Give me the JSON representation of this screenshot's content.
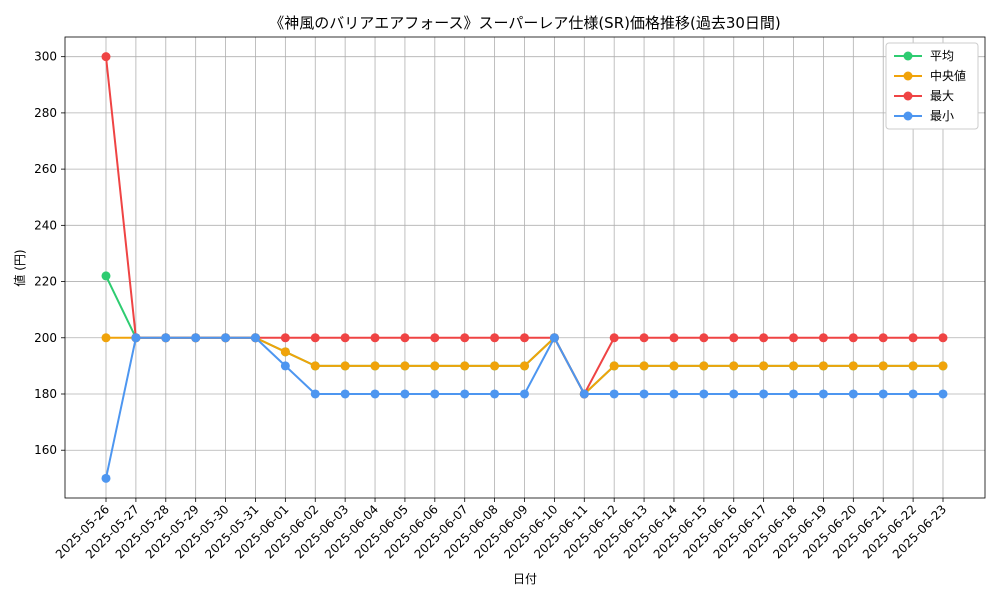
{
  "chart_data": {
    "type": "line",
    "title": "《神風のバリアエアフォース》スーパーレア仕様(SR)価格推移(過去30日間)",
    "xlabel": "日付",
    "ylabel": "値 (円)",
    "ylim": [
      143,
      307
    ],
    "yticks": [
      160,
      180,
      200,
      220,
      240,
      260,
      280,
      300
    ],
    "grid": true,
    "legend_position": "top-right",
    "categories": [
      "2025-05-26",
      "2025-05-27",
      "2025-05-28",
      "2025-05-29",
      "2025-05-30",
      "2025-05-31",
      "2025-06-01",
      "2025-06-02",
      "2025-06-03",
      "2025-06-04",
      "2025-06-05",
      "2025-06-06",
      "2025-06-07",
      "2025-06-08",
      "2025-06-09",
      "2025-06-10",
      "2025-06-11",
      "2025-06-12",
      "2025-06-13",
      "2025-06-14",
      "2025-06-15",
      "2025-06-16",
      "2025-06-17",
      "2025-06-18",
      "2025-06-19",
      "2025-06-20",
      "2025-06-21",
      "2025-06-22",
      "2025-06-23"
    ],
    "series": [
      {
        "name": "平均",
        "color": "#2ecc71",
        "values": [
          222,
          200,
          200,
          200,
          200,
          200,
          195,
          190,
          190,
          190,
          190,
          190,
          190,
          190,
          190,
          200,
          180,
          190,
          190,
          190,
          190,
          190,
          190,
          190,
          190,
          190,
          190,
          190,
          190
        ]
      },
      {
        "name": "中央値",
        "color": "#f0a30a",
        "values": [
          200,
          200,
          200,
          200,
          200,
          200,
          195,
          190,
          190,
          190,
          190,
          190,
          190,
          190,
          190,
          200,
          180,
          190,
          190,
          190,
          190,
          190,
          190,
          190,
          190,
          190,
          190,
          190,
          190
        ]
      },
      {
        "name": "最大",
        "color": "#ef4444",
        "values": [
          300,
          200,
          200,
          200,
          200,
          200,
          200,
          200,
          200,
          200,
          200,
          200,
          200,
          200,
          200,
          200,
          180,
          200,
          200,
          200,
          200,
          200,
          200,
          200,
          200,
          200,
          200,
          200,
          200
        ]
      },
      {
        "name": "最小",
        "color": "#4d96f0",
        "values": [
          150,
          200,
          200,
          200,
          200,
          200,
          190,
          180,
          180,
          180,
          180,
          180,
          180,
          180,
          180,
          200,
          180,
          180,
          180,
          180,
          180,
          180,
          180,
          180,
          180,
          180,
          180,
          180,
          180
        ]
      }
    ]
  }
}
